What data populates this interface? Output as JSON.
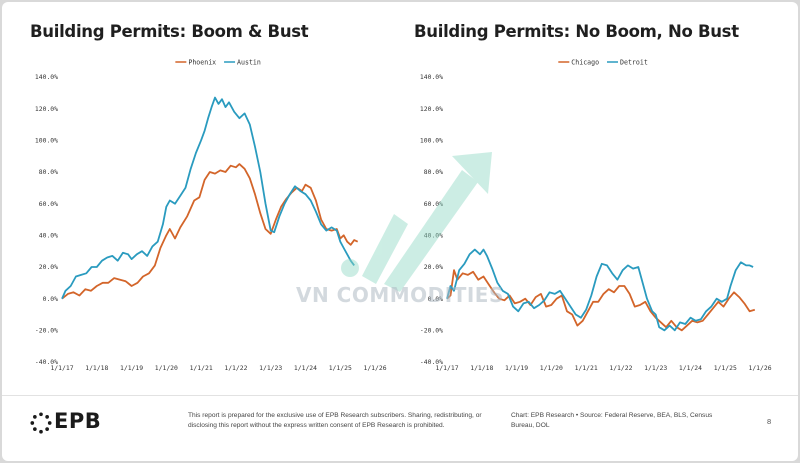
{
  "colors": {
    "orange": "#D3652A",
    "teal": "#2A9BBF",
    "watermark": "#8fd9c4"
  },
  "watermark": {
    "text": "VN COMMODITIES"
  },
  "footer": {
    "brand": "EPB",
    "disclaimer": "This report is prepared for the exclusive use of EPB Research subscribers. Sharing, redistributing, or disclosing this report without the express written consent of EPB Research is prohibited.",
    "source": "Chart: EPB Research  •  Source: Federal Reserve, BEA, BLS, Census Bureau, DOL",
    "page": "8"
  },
  "chart_data": [
    {
      "type": "line",
      "title": "Building Permits: Boom & Bust",
      "legend_position": "top-center",
      "grid": false,
      "ylim": [
        -40,
        140
      ],
      "yticks": [
        "-40.0%",
        "-20.0%",
        "0.0%",
        "20.0%",
        "40.0%",
        "60.0%",
        "80.0%",
        "100.0%",
        "120.0%",
        "140.0%"
      ],
      "xlim": [
        2017.0,
        2026.2
      ],
      "xticks": [
        "1/1/17",
        "1/1/18",
        "1/1/19",
        "1/1/20",
        "1/1/21",
        "1/1/22",
        "1/1/23",
        "1/1/24",
        "1/1/25",
        "1/1/26"
      ],
      "series": [
        {
          "name": "Phoenix",
          "color": "#D3652A",
          "points": [
            [
              2017.0,
              0
            ],
            [
              2017.17,
              3
            ],
            [
              2017.33,
              4
            ],
            [
              2017.5,
              2
            ],
            [
              2017.67,
              6
            ],
            [
              2017.83,
              5
            ],
            [
              2018.0,
              8
            ],
            [
              2018.17,
              10
            ],
            [
              2018.33,
              10
            ],
            [
              2018.5,
              13
            ],
            [
              2018.67,
              12
            ],
            [
              2018.83,
              11
            ],
            [
              2019.0,
              8
            ],
            [
              2019.17,
              10
            ],
            [
              2019.33,
              14
            ],
            [
              2019.5,
              16
            ],
            [
              2019.67,
              21
            ],
            [
              2019.83,
              32
            ],
            [
              2020.0,
              40
            ],
            [
              2020.1,
              44
            ],
            [
              2020.25,
              38
            ],
            [
              2020.4,
              45
            ],
            [
              2020.6,
              52
            ],
            [
              2020.8,
              62
            ],
            [
              2020.95,
              64
            ],
            [
              2021.1,
              75
            ],
            [
              2021.25,
              80
            ],
            [
              2021.4,
              79
            ],
            [
              2021.55,
              81
            ],
            [
              2021.7,
              80
            ],
            [
              2021.85,
              84
            ],
            [
              2022.0,
              83
            ],
            [
              2022.1,
              85
            ],
            [
              2022.25,
              82
            ],
            [
              2022.4,
              76
            ],
            [
              2022.55,
              66
            ],
            [
              2022.7,
              54
            ],
            [
              2022.85,
              44
            ],
            [
              2023.0,
              41
            ],
            [
              2023.15,
              50
            ],
            [
              2023.3,
              58
            ],
            [
              2023.45,
              63
            ],
            [
              2023.6,
              67
            ],
            [
              2023.75,
              70
            ],
            [
              2023.9,
              68
            ],
            [
              2024.0,
              72
            ],
            [
              2024.15,
              70
            ],
            [
              2024.3,
              62
            ],
            [
              2024.45,
              50
            ],
            [
              2024.6,
              44
            ],
            [
              2024.75,
              43
            ],
            [
              2024.9,
              44
            ],
            [
              2025.0,
              38
            ],
            [
              2025.1,
              40
            ],
            [
              2025.2,
              36
            ],
            [
              2025.3,
              34
            ],
            [
              2025.4,
              37
            ],
            [
              2025.5,
              36
            ]
          ]
        },
        {
          "name": "Austin",
          "color": "#2A9BBF",
          "points": [
            [
              2017.0,
              0
            ],
            [
              2017.1,
              5
            ],
            [
              2017.25,
              8
            ],
            [
              2017.4,
              14
            ],
            [
              2017.55,
              15
            ],
            [
              2017.7,
              16
            ],
            [
              2017.85,
              20
            ],
            [
              2018.0,
              20
            ],
            [
              2018.15,
              24
            ],
            [
              2018.3,
              26
            ],
            [
              2018.45,
              27
            ],
            [
              2018.6,
              24
            ],
            [
              2018.75,
              29
            ],
            [
              2018.9,
              28
            ],
            [
              2019.0,
              25
            ],
            [
              2019.15,
              28
            ],
            [
              2019.3,
              30
            ],
            [
              2019.45,
              27
            ],
            [
              2019.6,
              33
            ],
            [
              2019.75,
              36
            ],
            [
              2019.9,
              47
            ],
            [
              2020.0,
              58
            ],
            [
              2020.1,
              62
            ],
            [
              2020.25,
              60
            ],
            [
              2020.4,
              65
            ],
            [
              2020.55,
              70
            ],
            [
              2020.7,
              82
            ],
            [
              2020.85,
              92
            ],
            [
              2021.0,
              100
            ],
            [
              2021.1,
              106
            ],
            [
              2021.2,
              114
            ],
            [
              2021.3,
              121
            ],
            [
              2021.4,
              127
            ],
            [
              2021.5,
              123
            ],
            [
              2021.6,
              126
            ],
            [
              2021.7,
              121
            ],
            [
              2021.8,
              124
            ],
            [
              2021.95,
              118
            ],
            [
              2022.1,
              114
            ],
            [
              2022.25,
              117
            ],
            [
              2022.4,
              110
            ],
            [
              2022.55,
              96
            ],
            [
              2022.7,
              80
            ],
            [
              2022.85,
              60
            ],
            [
              2023.0,
              43
            ],
            [
              2023.1,
              42
            ],
            [
              2023.25,
              52
            ],
            [
              2023.4,
              60
            ],
            [
              2023.55,
              66
            ],
            [
              2023.7,
              71
            ],
            [
              2023.85,
              68
            ],
            [
              2024.0,
              66
            ],
            [
              2024.15,
              62
            ],
            [
              2024.3,
              55
            ],
            [
              2024.45,
              47
            ],
            [
              2024.6,
              43
            ],
            [
              2024.75,
              45
            ],
            [
              2024.9,
              43
            ],
            [
              2025.0,
              36
            ],
            [
              2025.1,
              32
            ],
            [
              2025.2,
              28
            ],
            [
              2025.3,
              24
            ],
            [
              2025.4,
              21
            ]
          ]
        }
      ]
    },
    {
      "type": "line",
      "title": "Building Permits: No Boom, No Bust",
      "legend_position": "top-center",
      "grid": false,
      "ylim": [
        -40,
        140
      ],
      "yticks": [
        "-40.0%",
        "-20.0%",
        "0.0%",
        "20.0%",
        "40.0%",
        "60.0%",
        "80.0%",
        "100.0%",
        "120.0%",
        "140.0%"
      ],
      "xlim": [
        2017.0,
        2026.2
      ],
      "xticks": [
        "1/1/17",
        "1/1/18",
        "1/1/19",
        "1/1/20",
        "1/1/21",
        "1/1/22",
        "1/1/23",
        "1/1/24",
        "1/1/25",
        "1/1/26"
      ],
      "series": [
        {
          "name": "Chicago",
          "color": "#D3652A",
          "points": [
            [
              2017.0,
              0
            ],
            [
              2017.1,
              2
            ],
            [
              2017.2,
              18
            ],
            [
              2017.3,
              12
            ],
            [
              2017.45,
              16
            ],
            [
              2017.6,
              15
            ],
            [
              2017.75,
              17
            ],
            [
              2017.9,
              12
            ],
            [
              2018.05,
              14
            ],
            [
              2018.2,
              9
            ],
            [
              2018.35,
              4
            ],
            [
              2018.5,
              0
            ],
            [
              2018.65,
              -1
            ],
            [
              2018.8,
              2
            ],
            [
              2018.95,
              -3
            ],
            [
              2019.1,
              -2
            ],
            [
              2019.25,
              0
            ],
            [
              2019.4,
              -4
            ],
            [
              2019.55,
              1
            ],
            [
              2019.7,
              3
            ],
            [
              2019.85,
              -5
            ],
            [
              2020.0,
              -4
            ],
            [
              2020.15,
              0
            ],
            [
              2020.3,
              2
            ],
            [
              2020.45,
              -8
            ],
            [
              2020.6,
              -10
            ],
            [
              2020.75,
              -17
            ],
            [
              2020.9,
              -14
            ],
            [
              2021.05,
              -8
            ],
            [
              2021.2,
              -2
            ],
            [
              2021.35,
              -2
            ],
            [
              2021.5,
              3
            ],
            [
              2021.65,
              6
            ],
            [
              2021.8,
              4
            ],
            [
              2021.95,
              8
            ],
            [
              2022.1,
              8
            ],
            [
              2022.25,
              3
            ],
            [
              2022.4,
              -5
            ],
            [
              2022.55,
              -4
            ],
            [
              2022.7,
              -2
            ],
            [
              2022.85,
              -8
            ],
            [
              2023.0,
              -12
            ],
            [
              2023.15,
              -15
            ],
            [
              2023.3,
              -18
            ],
            [
              2023.45,
              -14
            ],
            [
              2023.6,
              -18
            ],
            [
              2023.75,
              -20
            ],
            [
              2023.9,
              -17
            ],
            [
              2024.05,
              -14
            ],
            [
              2024.2,
              -15
            ],
            [
              2024.35,
              -14
            ],
            [
              2024.5,
              -10
            ],
            [
              2024.65,
              -6
            ],
            [
              2024.8,
              -2
            ],
            [
              2024.95,
              -5
            ],
            [
              2025.1,
              0
            ],
            [
              2025.25,
              4
            ],
            [
              2025.4,
              1
            ],
            [
              2025.55,
              -3
            ],
            [
              2025.7,
              -8
            ],
            [
              2025.85,
              -7
            ]
          ]
        },
        {
          "name": "Detroit",
          "color": "#2A9BBF",
          "points": [
            [
              2017.0,
              0
            ],
            [
              2017.1,
              8
            ],
            [
              2017.2,
              5
            ],
            [
              2017.35,
              18
            ],
            [
              2017.5,
              22
            ],
            [
              2017.65,
              28
            ],
            [
              2017.8,
              31
            ],
            [
              2017.95,
              28
            ],
            [
              2018.05,
              31
            ],
            [
              2018.15,
              27
            ],
            [
              2018.3,
              19
            ],
            [
              2018.45,
              10
            ],
            [
              2018.6,
              5
            ],
            [
              2018.75,
              3
            ],
            [
              2018.9,
              -5
            ],
            [
              2019.05,
              -8
            ],
            [
              2019.2,
              -3
            ],
            [
              2019.35,
              -2
            ],
            [
              2019.5,
              -6
            ],
            [
              2019.65,
              -4
            ],
            [
              2019.8,
              -1
            ],
            [
              2019.95,
              4
            ],
            [
              2020.1,
              3
            ],
            [
              2020.25,
              5
            ],
            [
              2020.4,
              0
            ],
            [
              2020.55,
              -5
            ],
            [
              2020.7,
              -10
            ],
            [
              2020.85,
              -12
            ],
            [
              2021.0,
              -7
            ],
            [
              2021.15,
              2
            ],
            [
              2021.3,
              14
            ],
            [
              2021.45,
              22
            ],
            [
              2021.6,
              21
            ],
            [
              2021.75,
              16
            ],
            [
              2021.9,
              12
            ],
            [
              2022.05,
              18
            ],
            [
              2022.2,
              21
            ],
            [
              2022.35,
              19
            ],
            [
              2022.5,
              20
            ],
            [
              2022.6,
              12
            ],
            [
              2022.75,
              0
            ],
            [
              2022.9,
              -8
            ],
            [
              2023.0,
              -10
            ],
            [
              2023.1,
              -18
            ],
            [
              2023.25,
              -20
            ],
            [
              2023.4,
              -17
            ],
            [
              2023.55,
              -20
            ],
            [
              2023.7,
              -15
            ],
            [
              2023.85,
              -16
            ],
            [
              2024.0,
              -12
            ],
            [
              2024.15,
              -14
            ],
            [
              2024.3,
              -13
            ],
            [
              2024.45,
              -8
            ],
            [
              2024.6,
              -5
            ],
            [
              2024.75,
              0
            ],
            [
              2024.9,
              -2
            ],
            [
              2025.05,
              0
            ],
            [
              2025.15,
              8
            ],
            [
              2025.3,
              18
            ],
            [
              2025.45,
              23
            ],
            [
              2025.6,
              21
            ],
            [
              2025.7,
              21
            ],
            [
              2025.8,
              20
            ]
          ]
        }
      ]
    }
  ]
}
